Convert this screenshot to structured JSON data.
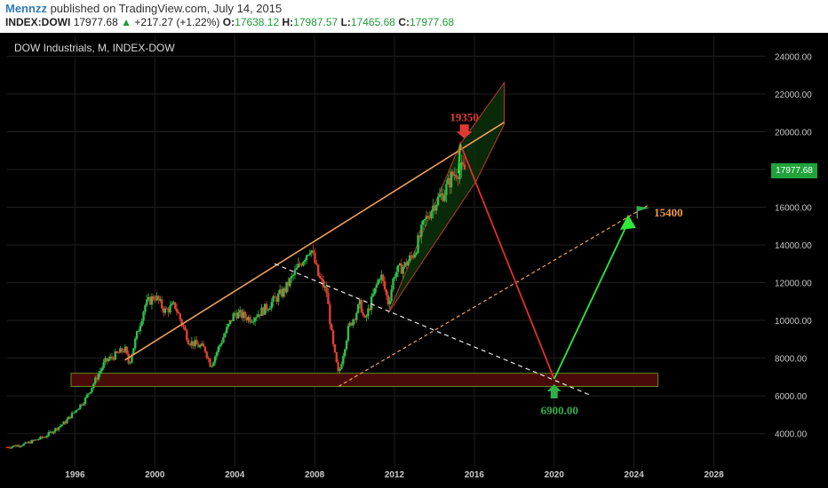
{
  "header": {
    "author": "Mennzz",
    "published": "published on TradingView.com, July 14, 2015",
    "symbol": "INDEX:DOWI",
    "last": "17977.68",
    "change": "+217.27 (+1.22%)",
    "open_label": "O:",
    "open": "17638.12",
    "high_label": "H:",
    "high": "17987.57",
    "low_label": "L:",
    "low": "17465.68",
    "close_label": "C:",
    "close": "17977.68"
  },
  "chart_title": "DOW Industrials, M, INDEX-DOW",
  "price_badge": "17977.68",
  "colors": {
    "background": "#000000",
    "grid": "#1f1f1f",
    "axis_text": "#c8c8c8",
    "up_candle": "#2fbf4a",
    "down_candle": "#e0402e",
    "orange_line": "#f0a05a",
    "red_line": "#e0302a",
    "green_arrow": "#2ee83a",
    "support_zone": "#4a0a0a",
    "support_border": "#6a8a20",
    "annotation_red": "#e03a30",
    "annotation_orange": "#f09a50",
    "annotation_green": "#2fae4a"
  },
  "chart_data": {
    "type": "candlestick",
    "title": "DOW Industrials, M, INDEX-DOW",
    "x_ticks": [
      "1996",
      "2000",
      "2004",
      "2008",
      "2012",
      "2016",
      "2020",
      "2024",
      "2028"
    ],
    "y_ticks": [
      "4000.00",
      "6000.00",
      "8000.00",
      "10000.00",
      "12000.00",
      "14000.00",
      "16000.00",
      "18000.00",
      "20000.00",
      "22000.00",
      "24000.00"
    ],
    "xlim": [
      1992.6,
      2030.6
    ],
    "ylim": [
      2200,
      25100
    ],
    "price_path": [
      [
        1992.6,
        3280
      ],
      [
        1993.5,
        3450
      ],
      [
        1994.5,
        3850
      ],
      [
        1995.5,
        4600
      ],
      [
        1996.5,
        5800
      ],
      [
        1997.5,
        7800
      ],
      [
        1998.5,
        8500
      ],
      [
        1998.7,
        7700
      ],
      [
        1999.5,
        10800
      ],
      [
        2000.0,
        11300
      ],
      [
        2000.5,
        10500
      ],
      [
        2001.0,
        10800
      ],
      [
        2001.7,
        8900
      ],
      [
        2002.5,
        8500
      ],
      [
        2002.8,
        7600
      ],
      [
        2003.5,
        9300
      ],
      [
        2004.0,
        10400
      ],
      [
        2004.8,
        10100
      ],
      [
        2005.5,
        10600
      ],
      [
        2006.5,
        11600
      ],
      [
        2007.5,
        13400
      ],
      [
        2007.8,
        13900
      ],
      [
        2008.2,
        12300
      ],
      [
        2008.6,
        11500
      ],
      [
        2008.9,
        8800
      ],
      [
        2009.2,
        7100
      ],
      [
        2009.7,
        9600
      ],
      [
        2010.3,
        10900
      ],
      [
        2010.5,
        9900
      ],
      [
        2011.3,
        12500
      ],
      [
        2011.7,
        10900
      ],
      [
        2012.0,
        12500
      ],
      [
        2012.5,
        12900
      ],
      [
        2013.0,
        13600
      ],
      [
        2013.5,
        15200
      ],
      [
        2014.0,
        16200
      ],
      [
        2014.5,
        16800
      ],
      [
        2014.9,
        17700
      ],
      [
        2015.3,
        18000
      ],
      [
        2015.54,
        17978
      ]
    ],
    "annotations": [
      {
        "label": "19350",
        "value": 19350,
        "x": 2015.5
      },
      {
        "label": "15400",
        "value": 15400,
        "x": 2024.2
      },
      {
        "label": "6900.00",
        "value": 6900,
        "x": 2020.0
      }
    ],
    "support_zone": [
      6500,
      7200
    ]
  }
}
